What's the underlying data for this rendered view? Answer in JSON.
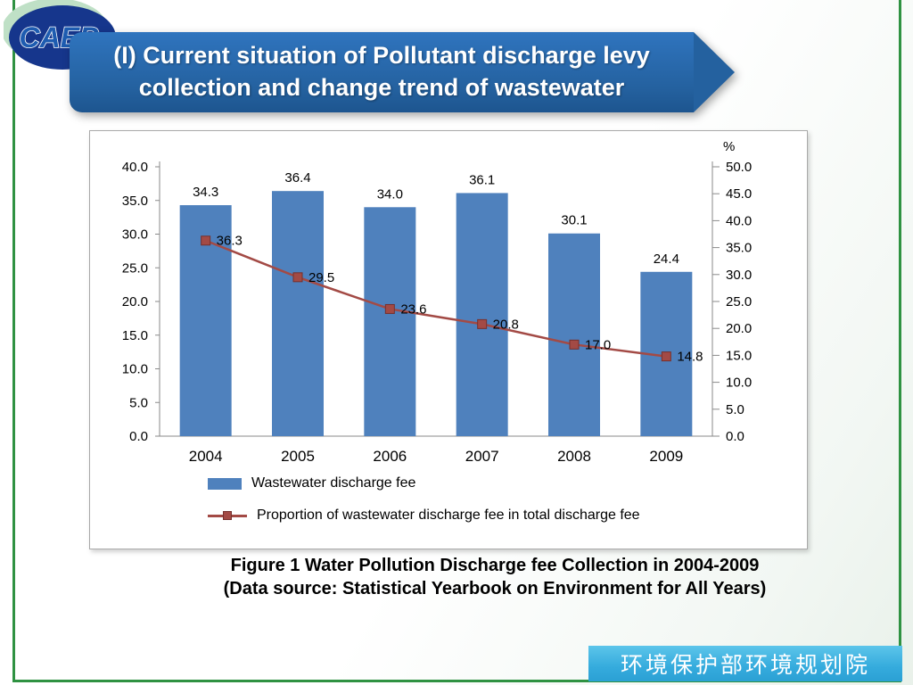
{
  "logo": {
    "text": "CAEP"
  },
  "header": {
    "title_line1": "(I) Current situation of Pollutant discharge levy",
    "title_line2": "collection and change trend of wastewater"
  },
  "chart_data": {
    "type": "bar",
    "categories": [
      "2004",
      "2005",
      "2006",
      "2007",
      "2008",
      "2009"
    ],
    "series": [
      {
        "name": "Wastewater discharge fee",
        "type": "bar",
        "axis": "left",
        "color": "#4f81bd",
        "values": [
          34.3,
          36.4,
          34.0,
          36.1,
          30.1,
          24.4
        ],
        "labels": [
          "34.3",
          "36.4",
          "34.0",
          "36.1",
          "30.1",
          "24.4"
        ]
      },
      {
        "name": "Proportion of wastewater discharge fee in total discharge fee",
        "type": "line",
        "axis": "right",
        "color": "#a34a45",
        "marker_border": "#76302d",
        "values": [
          36.3,
          29.5,
          23.6,
          20.8,
          17.0,
          14.8
        ],
        "labels": [
          "36.3",
          "29.5",
          "23.6",
          "20.8",
          "17.0",
          "14.8"
        ]
      }
    ],
    "left_axis": {
      "min": 0,
      "max": 40,
      "step": 5,
      "tick_labels": [
        "0.0",
        "5.0",
        "10.0",
        "15.0",
        "20.0",
        "25.0",
        "30.0",
        "35.0",
        "40.0"
      ]
    },
    "right_axis": {
      "min": 0,
      "max": 50,
      "step": 5,
      "unit": "%",
      "tick_labels": [
        "0.0",
        "5.0",
        "10.0",
        "15.0",
        "20.0",
        "25.0",
        "30.0",
        "35.0",
        "40.0",
        "45.0",
        "50.0"
      ]
    },
    "grid": false,
    "legend_position": "bottom-left"
  },
  "caption": {
    "line1": "Figure 1 Water Pollution Discharge fee Collection in 2004-2009",
    "line2": "(Data source: Statistical Yearbook on Environment for All Years)"
  },
  "footer": {
    "org": "环境保护部环境规划院"
  },
  "colors": {
    "banner_blue": "#24619f",
    "frame_green": "#2f9242",
    "footer_cyan": "#35abdd",
    "bar_blue": "#4f81bd",
    "line_red": "#a34a45"
  }
}
